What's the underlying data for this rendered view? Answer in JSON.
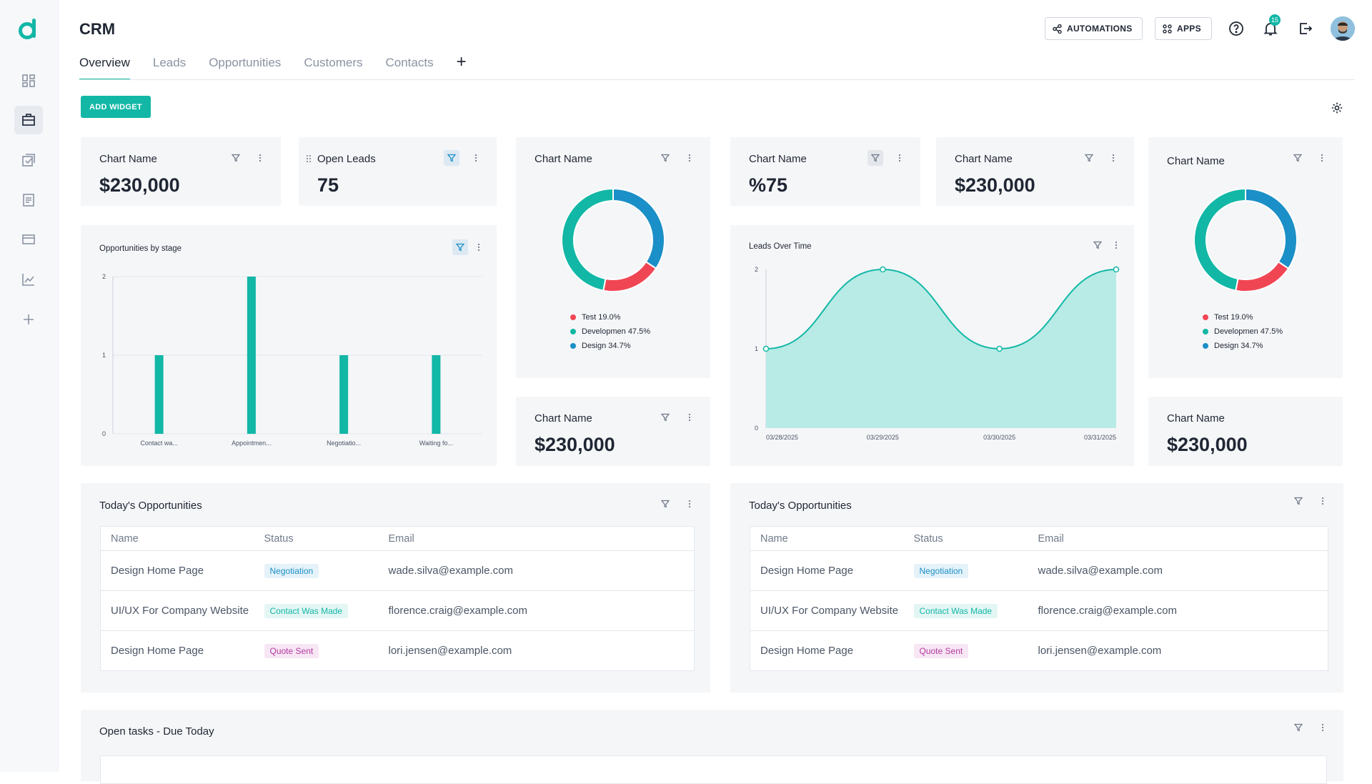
{
  "app": {
    "title": "CRM"
  },
  "colors": {
    "accent": "#12b7a6",
    "blue": "#1b8fc7",
    "red": "#f04654"
  },
  "sidebar": {
    "items": [
      {
        "icon": "dashboard-icon"
      },
      {
        "icon": "briefcase-icon"
      },
      {
        "icon": "tasks-icon"
      },
      {
        "icon": "document-icon"
      },
      {
        "icon": "card-icon"
      },
      {
        "icon": "chart-icon"
      },
      {
        "icon": "plus-icon"
      }
    ]
  },
  "header": {
    "automations_label": "AUTOMATIONS",
    "apps_label": "APPS",
    "notifications_count": "15"
  },
  "tabs": [
    {
      "label": "Overview"
    },
    {
      "label": "Leads"
    },
    {
      "label": "Opportunities"
    },
    {
      "label": "Customers"
    },
    {
      "label": "Contacts"
    }
  ],
  "tab_add_label": "+",
  "toolbar": {
    "add_widget_label": "ADD WIDGET"
  },
  "widgets": {
    "w1": {
      "title": "Chart Name",
      "value": "$230,000"
    },
    "w2": {
      "title": "Open Leads",
      "value": "75"
    },
    "w3": {
      "title": "Chart Name"
    },
    "w4": {
      "title": "Chart Name",
      "value": "%75"
    },
    "w5": {
      "title": "Chart Name",
      "value": "$230,000"
    },
    "w6": {
      "title": "Chart Name"
    },
    "w7": {
      "title": "Chart Name",
      "value": "$230,000"
    },
    "w8": {
      "title": "Chart Name",
      "value": "$230,000"
    },
    "bar_title": "Opportunities by stage",
    "line_title": "Leads Over Time",
    "donut_legend": [
      "Test 19.0%",
      "Developmen 47.5%",
      "Design 34.7%"
    ],
    "opps_title": "Today's Opportunities",
    "tasks_title": "Open tasks - Due Today"
  },
  "table": {
    "headers": [
      "Name",
      "Status",
      "Email"
    ],
    "rows": [
      {
        "name": "Design Home Page",
        "status": "Negotiation",
        "email": "wade.silva@example.com"
      },
      {
        "name": "UI/UX For Company Website",
        "status": "Contact Was Made",
        "email": "florence.craig@example.com"
      },
      {
        "name": "Design Home Page",
        "status": "Quote Sent",
        "email": "lori.jensen@example.com"
      }
    ]
  },
  "chart_data": [
    {
      "type": "bar",
      "title": "Opportunities by stage",
      "categories": [
        "Contact wa...",
        "Appointmen...",
        "Negotiatio...",
        "Waiting fo..."
      ],
      "values": [
        1,
        2,
        1,
        1
      ],
      "yticks": [
        "0",
        "1",
        "2"
      ],
      "ylim": [
        0,
        2
      ]
    },
    {
      "type": "area",
      "title": "Leads Over Time",
      "x": [
        "03/28/2025",
        "03/29/2025",
        "03/30/2025",
        "03/31/2025"
      ],
      "values": [
        1,
        2,
        1,
        2
      ],
      "yticks": [
        "0",
        "1",
        "2"
      ],
      "ylim": [
        0,
        2
      ]
    },
    {
      "type": "pie",
      "labels": [
        "Test",
        "Developmen",
        "Design"
      ],
      "values": [
        19.0,
        47.5,
        34.7
      ]
    }
  ]
}
